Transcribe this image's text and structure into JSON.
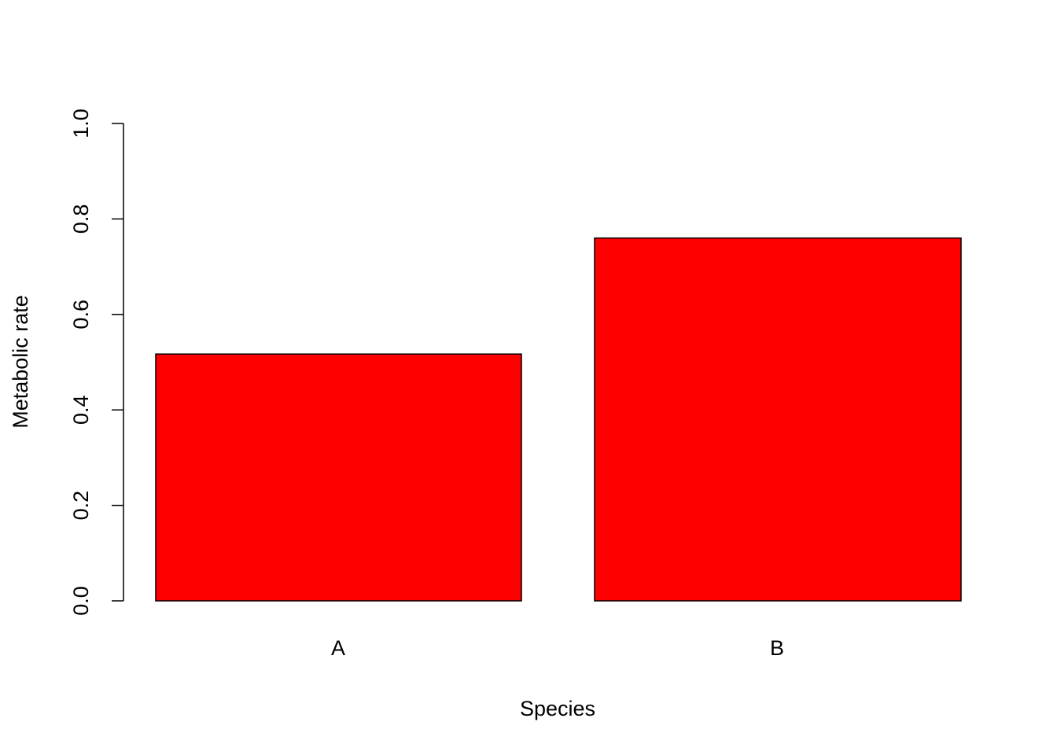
{
  "chart_data": {
    "type": "bar",
    "categories": [
      "A",
      "B"
    ],
    "values": [
      0.517,
      0.76
    ],
    "title": "",
    "xlabel": "Species",
    "ylabel": "Metabolic rate",
    "ylim": [
      0,
      1.0
    ],
    "yticks": [
      "0.0",
      "0.2",
      "0.4",
      "0.6",
      "0.8",
      "1.0"
    ],
    "grid": false,
    "legend": "none",
    "bar_color": "#ff0000",
    "bar_border_color": "#000000"
  }
}
